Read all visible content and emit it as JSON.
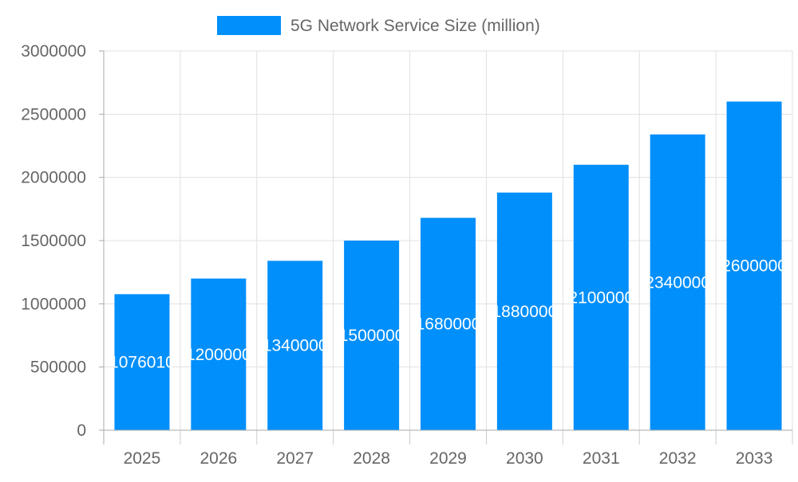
{
  "chart_data": {
    "type": "bar",
    "title": "",
    "xlabel": "",
    "ylabel": "",
    "categories": [
      "2025",
      "2026",
      "2027",
      "2028",
      "2029",
      "2030",
      "2031",
      "2032",
      "2033"
    ],
    "series": [
      {
        "name": "5G Network Service Size (million)",
        "values": [
          1076010,
          1200000,
          1340000,
          1500000,
          1680000,
          1880000,
          2100000,
          2340000,
          2600000
        ],
        "color": "#008ffb"
      }
    ],
    "ylim": [
      0,
      3000000
    ],
    "yticks": [
      0,
      500000,
      1000000,
      1500000,
      2000000,
      2500000,
      3000000
    ],
    "grid": true,
    "legend_position": "top",
    "data_labels": true
  }
}
